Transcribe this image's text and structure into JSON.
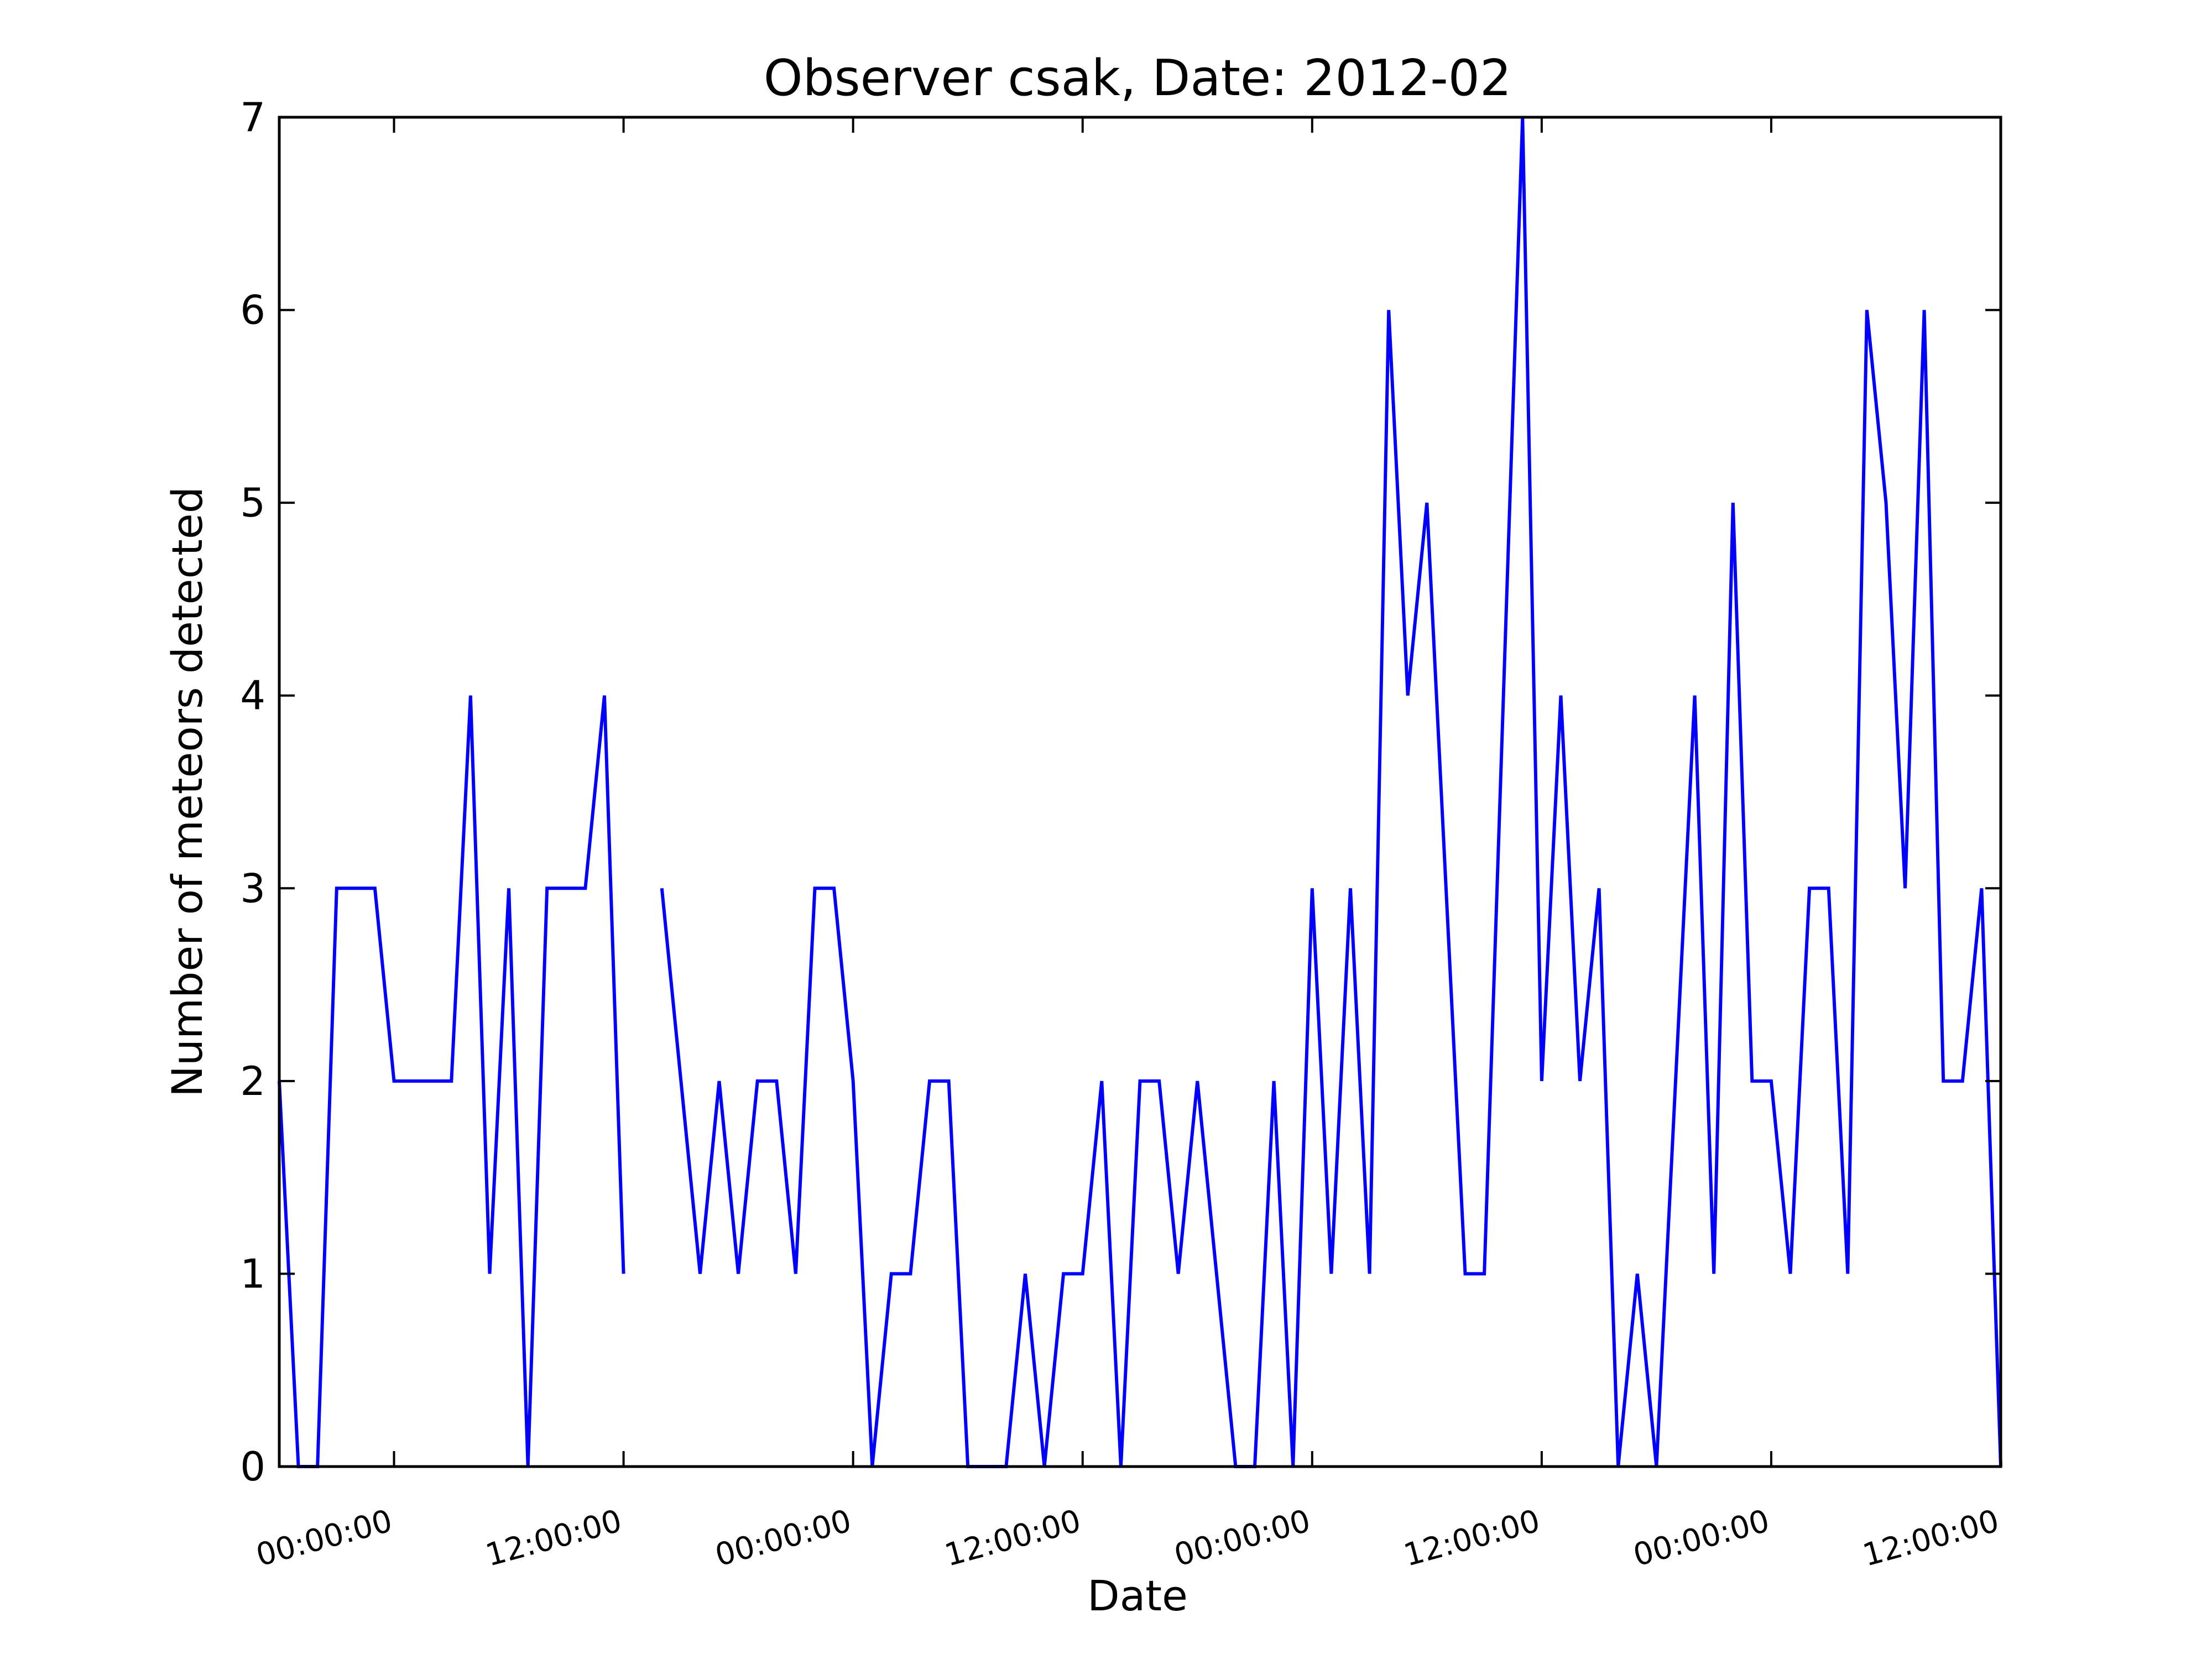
{
  "chart_data": {
    "type": "line",
    "title": "Observer csak, Date: 2012-02",
    "xlabel": "Date",
    "ylabel": "Number of meteors detected",
    "ylim": [
      0,
      7
    ],
    "yticks": [
      0,
      1,
      2,
      3,
      4,
      5,
      6,
      7
    ],
    "xtick_labels": [
      "00:00:00",
      "12:00:00",
      "00:00:00",
      "12:00:00",
      "00:00:00",
      "12:00:00",
      "00:00:00",
      "12:00:00"
    ],
    "xtick_hours": [
      6,
      18,
      30,
      42,
      54,
      66,
      78,
      90
    ],
    "xlim_hours": [
      0,
      90
    ],
    "grid": false,
    "series": [
      {
        "color": "#0000ff",
        "segments": [
          [
            [
              0,
              2
            ],
            [
              1,
              0
            ],
            [
              2,
              0
            ],
            [
              3,
              3
            ],
            [
              4,
              3
            ],
            [
              5,
              3
            ],
            [
              6,
              2
            ],
            [
              7,
              2
            ],
            [
              8,
              2
            ],
            [
              9,
              2
            ],
            [
              10,
              4
            ],
            [
              11,
              1
            ],
            [
              12,
              3
            ],
            [
              13,
              0
            ],
            [
              14,
              3
            ],
            [
              15,
              3
            ],
            [
              16,
              3
            ],
            [
              17,
              4
            ],
            [
              18,
              1
            ]
          ],
          [
            [
              20,
              3
            ],
            [
              21,
              2
            ],
            [
              22,
              1
            ],
            [
              23,
              2
            ],
            [
              24,
              1
            ],
            [
              25,
              2
            ],
            [
              26,
              2
            ],
            [
              27,
              1
            ],
            [
              28,
              3
            ],
            [
              29,
              3
            ],
            [
              30,
              2
            ],
            [
              31,
              0
            ],
            [
              32,
              1
            ],
            [
              33,
              1
            ],
            [
              34,
              2
            ],
            [
              35,
              2
            ],
            [
              36,
              0
            ],
            [
              37,
              0
            ],
            [
              38,
              0
            ],
            [
              39,
              1
            ],
            [
              40,
              0
            ],
            [
              41,
              1
            ],
            [
              42,
              1
            ],
            [
              43,
              2
            ],
            [
              44,
              0
            ],
            [
              45,
              2
            ],
            [
              46,
              2
            ],
            [
              47,
              1
            ],
            [
              48,
              2
            ],
            [
              49,
              1
            ],
            [
              50,
              0
            ],
            [
              51,
              0
            ],
            [
              52,
              2
            ],
            [
              53,
              0
            ],
            [
              54,
              3
            ],
            [
              55,
              1
            ],
            [
              56,
              3
            ],
            [
              57,
              1
            ],
            [
              58,
              6
            ],
            [
              59,
              4
            ],
            [
              60,
              5
            ],
            [
              61,
              3
            ],
            [
              62,
              1
            ],
            [
              63,
              1
            ],
            [
              64,
              4
            ],
            [
              65,
              7
            ],
            [
              66,
              2
            ],
            [
              67,
              4
            ],
            [
              68,
              2
            ],
            [
              69,
              3
            ],
            [
              70,
              0
            ],
            [
              71,
              1
            ],
            [
              72,
              0
            ],
            [
              73,
              2
            ],
            [
              74,
              4
            ],
            [
              75,
              1
            ],
            [
              76,
              5
            ],
            [
              77,
              2
            ],
            [
              78,
              2
            ],
            [
              79,
              1
            ],
            [
              80,
              3
            ],
            [
              81,
              3
            ],
            [
              82,
              1
            ],
            [
              83,
              6
            ],
            [
              84,
              5
            ],
            [
              85,
              3
            ],
            [
              86,
              6
            ],
            [
              87,
              2
            ],
            [
              88,
              2
            ],
            [
              89,
              3
            ],
            [
              90,
              0
            ]
          ]
        ]
      }
    ]
  }
}
